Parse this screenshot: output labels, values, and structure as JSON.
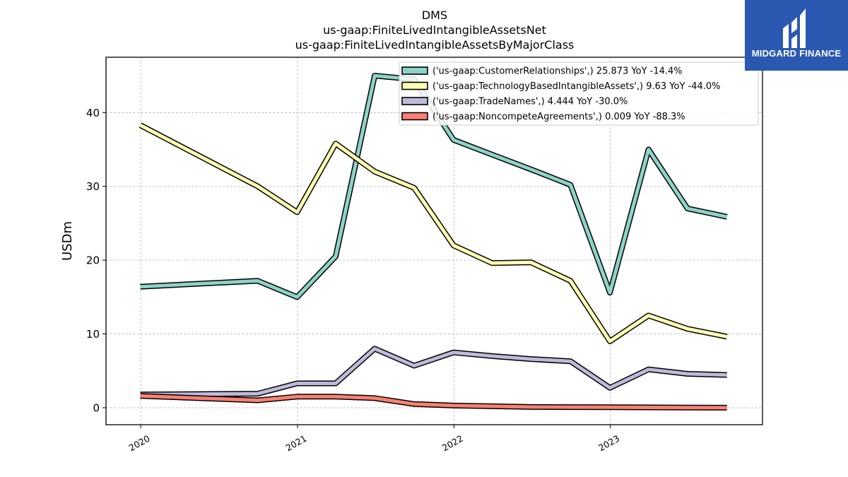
{
  "chart_data": {
    "type": "line",
    "title_lines": [
      "DMS",
      "us-gaap:FiniteLivedIntangibleAssetsNet",
      "us-gaap:FiniteLivedIntangibleAssetsByMajorClass"
    ],
    "ylabel": "USDm",
    "xlabel": "",
    "ylim": [
      -2.3,
      47.5
    ],
    "xlim": [
      "2019-10-12",
      "2023-12-22"
    ],
    "y_ticks": [
      0,
      10,
      20,
      30,
      40
    ],
    "y_tick_labels": [
      "0",
      "10",
      "20",
      "30",
      "40"
    ],
    "x_ticks": [
      "2020-01-01",
      "2021-01-01",
      "2022-01-01",
      "2023-01-01"
    ],
    "x_tick_labels": [
      "2020",
      "2021",
      "2022",
      "2023"
    ],
    "grid": true,
    "legend_position": "top-right",
    "x": [
      "2019-12-31",
      "2020-09-30",
      "2020-12-31",
      "2021-03-31",
      "2021-06-30",
      "2021-09-30",
      "2021-12-31",
      "2022-03-31",
      "2022-06-30",
      "2022-09-30",
      "2022-12-31",
      "2023-03-31",
      "2023-06-30",
      "2023-09-30"
    ],
    "series": [
      {
        "name": "('us-gaap:CustomerRelationships',) 25.873 YoY -14.4%",
        "color": "#8dd3c7",
        "values": [
          16.4,
          17.2,
          15.0,
          20.5,
          45.0,
          44.5,
          36.3,
          34.3,
          32.3,
          30.2,
          15.6,
          35.0,
          27.0,
          25.873
        ]
      },
      {
        "name": "('us-gaap:TechnologyBasedIntangibleAssets',) 9.63 YoY -44.0%",
        "color": "#ffffb3",
        "values": [
          38.3,
          30.0,
          26.5,
          35.8,
          32.0,
          29.8,
          22.0,
          19.6,
          19.7,
          17.2,
          9.0,
          12.5,
          10.7,
          9.63
        ]
      },
      {
        "name": "('us-gaap:TradeNames',) 4.444 YoY -30.0%",
        "color": "#bebada",
        "values": [
          1.8,
          1.9,
          3.3,
          3.3,
          8.0,
          5.7,
          7.5,
          7.0,
          6.6,
          6.3,
          2.7,
          5.2,
          4.6,
          4.444
        ]
      },
      {
        "name": "('us-gaap:NoncompeteAgreements',) 0.009 YoY -88.3%",
        "color": "#fb8072",
        "values": [
          1.6,
          1.0,
          1.5,
          1.5,
          1.3,
          0.5,
          0.3,
          0.2,
          0.1,
          0.08,
          0.077,
          0.05,
          0.02,
          0.009
        ]
      }
    ]
  },
  "logo": {
    "text": "MIDGARD FINANCE"
  }
}
